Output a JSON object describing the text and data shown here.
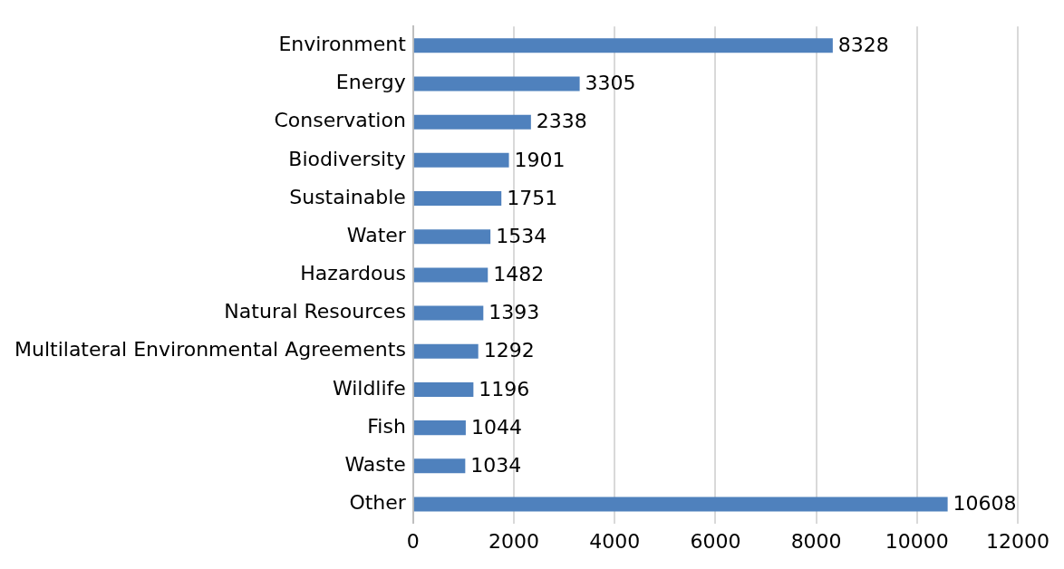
{
  "chart_data": {
    "type": "bar",
    "orientation": "horizontal",
    "categories": [
      "Environment",
      "Energy",
      "Conservation",
      "Biodiversity",
      "Sustainable",
      "Water",
      "Hazardous",
      "Natural Resources",
      "Multilateral Environmental Agreements",
      "Wildlife",
      "Fish",
      "Waste",
      "Other"
    ],
    "values": [
      8328,
      3305,
      2338,
      1901,
      1751,
      1534,
      1482,
      1393,
      1292,
      1196,
      1044,
      1034,
      10608
    ],
    "color": "#4f81bd",
    "xlim": [
      0,
      12000
    ],
    "xticks": [
      0,
      2000,
      4000,
      6000,
      8000,
      10000,
      12000
    ],
    "grid": "x",
    "data_labels": true
  }
}
